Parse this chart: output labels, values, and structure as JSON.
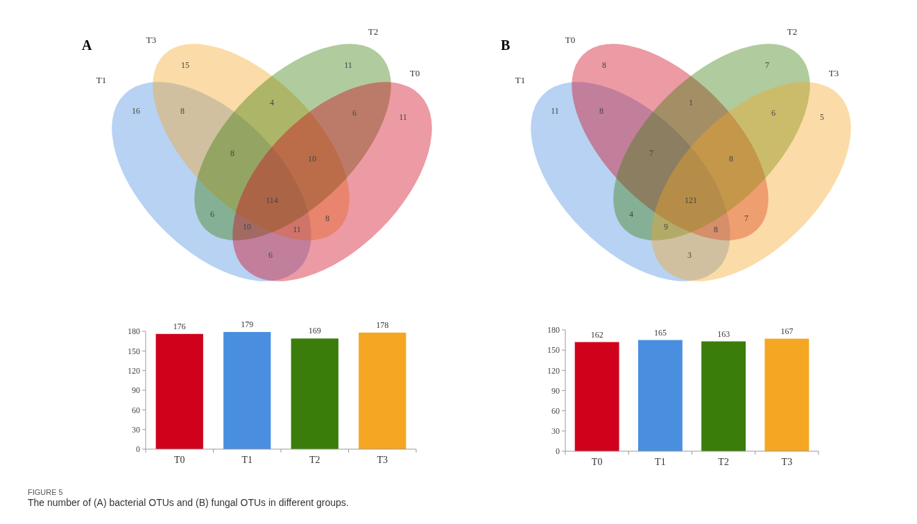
{
  "chart_data": [
    {
      "type": "other",
      "title": "A",
      "categories": [
        "T1",
        "T3",
        "T2",
        "T0"
      ],
      "colors": [
        "#4a8fdf",
        "#f5a623",
        "#3a7d0a",
        "#d0021b"
      ],
      "annotations": [
        "16",
        "15",
        "11",
        "11",
        "8",
        "4",
        "6",
        "6",
        "6",
        "8",
        "8",
        "10",
        "10",
        "11",
        "114"
      ]
    },
    {
      "type": "bar",
      "categories": [
        "T0",
        "T1",
        "T2",
        "T3"
      ],
      "values": [
        176,
        179,
        169,
        178
      ],
      "colors": [
        "#d0021b",
        "#4a8fdf",
        "#3a7d0a",
        "#f5a623"
      ],
      "ylim": [
        0,
        180
      ],
      "yticks": [
        0,
        30,
        60,
        90,
        120,
        150,
        180
      ],
      "data_labels": true
    },
    {
      "type": "other",
      "title": "B",
      "categories": [
        "T1",
        "T0",
        "T2",
        "T3"
      ],
      "colors": [
        "#4a8fdf",
        "#d0021b",
        "#3a7d0a",
        "#f5a623"
      ],
      "annotations": [
        "11",
        "8",
        "7",
        "5",
        "8",
        "1",
        "6",
        "3",
        "4",
        "7",
        "7",
        "8",
        "9",
        "8",
        "121"
      ]
    },
    {
      "type": "bar",
      "categories": [
        "T0",
        "T1",
        "T2",
        "T3"
      ],
      "values": [
        162,
        165,
        163,
        167
      ],
      "colors": [
        "#d0021b",
        "#4a8fdf",
        "#3a7d0a",
        "#f5a623"
      ],
      "ylim": [
        0,
        180
      ],
      "yticks": [
        0,
        30,
        60,
        90,
        120,
        150,
        180
      ],
      "data_labels": true,
      "annotations": [
        "FIGURE 5",
        "The number of (A) bacterial OTUs and (B) fungal OTUs in different groups."
      ]
    }
  ]
}
